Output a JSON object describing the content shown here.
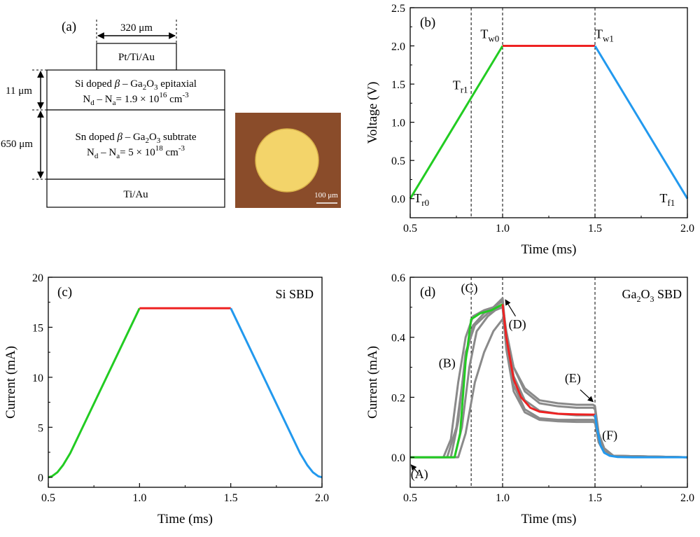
{
  "panel_a": {
    "label": "(a)",
    "contact_width": "320 μm",
    "top_contact": "Pt/Ti/Au",
    "epi_line1_pre": "Si doped ",
    "epi_line1_greek": "β",
    "epi_line1_mid": " – Ga",
    "epi_line1_s1": "2",
    "epi_line1_o": "O",
    "epi_line1_s2": "3",
    "epi_line1_post": " epitaxial",
    "epi_line2_n": "N",
    "epi_line2_d": "d",
    "epi_line2_minus": " – N",
    "epi_line2_a": "a",
    "epi_line2_val": "= 1.9 × 10",
    "epi_line2_exp": "16",
    "epi_line2_unit": " cm",
    "epi_line2_uexp": "-3",
    "epi_thickness": "11 μm",
    "sub_line1_pre": "Sn doped ",
    "sub_line1_greek": "β",
    "sub_line1_mid": " – Ga",
    "sub_line1_s1": "2",
    "sub_line1_o": "O",
    "sub_line1_s2": "3",
    "sub_line1_post": " subtrate",
    "sub_line2_n": "N",
    "sub_line2_d": "d",
    "sub_line2_minus": " – N",
    "sub_line2_a": "a",
    "sub_line2_val": "=  5 × 10",
    "sub_line2_exp": "18",
    "sub_line2_unit": " cm",
    "sub_line2_uexp": "-3",
    "sub_thickness": "650 μm",
    "bottom_contact": "Ti/Au",
    "scale_bar": "100 μm",
    "colors": {
      "photo_bg": "#8a4c2a",
      "pad": "#f3d46a"
    }
  },
  "chart_data": [
    {
      "panel": "(b)",
      "type": "line",
      "xlabel": "Time (ms)",
      "ylabel": "Voltage (V)",
      "xlim": [
        0.5,
        2.0
      ],
      "ylim": [
        -0.25,
        2.5
      ],
      "xticks": [
        "0.5",
        "1.0",
        "1.5",
        "2.0"
      ],
      "yticks": [
        "0.0",
        "0.5",
        "1.0",
        "1.5",
        "2.0",
        "2.5"
      ],
      "series": [
        {
          "color": "#22cc22",
          "x": [
            0.5,
            1.0
          ],
          "y": [
            0.0,
            2.0
          ]
        },
        {
          "color": "#ee2222",
          "x": [
            1.0,
            1.5
          ],
          "y": [
            2.0,
            2.0
          ]
        },
        {
          "color": "#2299ee",
          "x": [
            1.5,
            2.0
          ],
          "y": [
            2.0,
            0.0
          ]
        }
      ],
      "annotations": [
        {
          "base": "T",
          "sub": "r0",
          "x": 0.52,
          "y": -0.05
        },
        {
          "base": "T",
          "sub": "r1",
          "x": 0.73,
          "y": 1.43
        },
        {
          "base": "T",
          "sub": "w0",
          "x": 0.88,
          "y": 2.1
        },
        {
          "base": "T",
          "sub": "w1",
          "x": 1.5,
          "y": 2.1
        },
        {
          "base": "T",
          "sub": "f1",
          "x": 1.85,
          "y": -0.05
        }
      ],
      "vlines": [
        0.83,
        1.0,
        1.5
      ]
    },
    {
      "panel": "(c)",
      "type": "line",
      "title": "Si SBD",
      "xlabel": "Time (ms)",
      "ylabel": "Current (mA)",
      "xlim": [
        0.5,
        2.0
      ],
      "ylim": [
        -1,
        20
      ],
      "xticks": [
        "0.5",
        "1.0",
        "1.5",
        "2.0"
      ],
      "yticks": [
        "0",
        "5",
        "10",
        "15",
        "20"
      ],
      "series": [
        {
          "color": "#22cc22",
          "x": [
            0.5,
            0.52,
            0.55,
            0.58,
            0.62,
            1.0
          ],
          "y": [
            0.0,
            0.1,
            0.5,
            1.2,
            2.4,
            16.9
          ]
        },
        {
          "color": "#ee2222",
          "x": [
            1.0,
            1.5
          ],
          "y": [
            16.9,
            16.9
          ]
        },
        {
          "color": "#2299ee",
          "x": [
            1.5,
            1.88,
            1.92,
            1.95,
            1.98,
            2.0
          ],
          "y": [
            16.9,
            2.4,
            1.2,
            0.5,
            0.1,
            0.0
          ]
        }
      ]
    },
    {
      "panel": "(d)",
      "type": "line",
      "title_pre": "Ga",
      "title_s1": "2",
      "title_o": "O",
      "title_s2": "3",
      "title_post": " SBD",
      "xlabel": "Time (ms)",
      "ylabel": "Current (mA)",
      "xlim": [
        0.5,
        2.0
      ],
      "ylim": [
        -0.1,
        0.6
      ],
      "xticks": [
        "0.5",
        "1.0",
        "1.5",
        "2.0"
      ],
      "yticks": [
        "0.0",
        "0.2",
        "0.4",
        "0.6"
      ],
      "gray_series": [
        {
          "x": [
            0.5,
            0.68,
            0.72,
            0.76,
            0.8,
            0.84,
            0.9,
            0.95,
            1.0,
            1.02,
            1.06,
            1.12,
            1.2,
            1.3,
            1.4,
            1.49,
            1.5,
            1.52,
            1.55,
            1.6,
            2.0
          ],
          "y": [
            0.0,
            0.0,
            0.06,
            0.25,
            0.4,
            0.47,
            0.49,
            0.5,
            0.52,
            0.38,
            0.24,
            0.16,
            0.13,
            0.125,
            0.125,
            0.125,
            0.12,
            0.05,
            0.02,
            0.005,
            0.0
          ]
        },
        {
          "x": [
            0.5,
            0.7,
            0.75,
            0.8,
            0.84,
            0.9,
            0.95,
            1.0,
            1.02,
            1.06,
            1.12,
            1.2,
            1.3,
            1.4,
            1.49,
            1.5,
            1.52,
            1.55,
            1.6,
            2.0
          ],
          "y": [
            0.0,
            0.0,
            0.1,
            0.33,
            0.44,
            0.48,
            0.5,
            0.53,
            0.4,
            0.27,
            0.19,
            0.155,
            0.145,
            0.14,
            0.14,
            0.135,
            0.06,
            0.02,
            0.005,
            0.0
          ]
        },
        {
          "x": [
            0.5,
            0.74,
            0.78,
            0.82,
            0.86,
            0.92,
            1.0,
            1.02,
            1.06,
            1.12,
            1.2,
            1.3,
            1.4,
            1.49,
            1.5,
            1.52,
            1.55,
            1.6,
            2.0
          ],
          "y": [
            0.0,
            0.0,
            0.1,
            0.3,
            0.42,
            0.47,
            0.51,
            0.42,
            0.3,
            0.22,
            0.18,
            0.17,
            0.165,
            0.165,
            0.16,
            0.07,
            0.02,
            0.005,
            0.0
          ]
        },
        {
          "x": [
            0.5,
            0.76,
            0.8,
            0.85,
            0.9,
            0.95,
            1.0,
            1.02,
            1.06,
            1.12,
            1.2,
            1.3,
            1.4,
            1.49,
            1.5,
            1.52,
            1.55,
            1.6,
            2.0
          ],
          "y": [
            0.0,
            0.0,
            0.08,
            0.25,
            0.35,
            0.42,
            0.46,
            0.4,
            0.3,
            0.23,
            0.19,
            0.18,
            0.175,
            0.175,
            0.17,
            0.08,
            0.03,
            0.005,
            0.0
          ]
        },
        {
          "x": [
            0.5,
            0.72,
            0.76,
            0.8,
            0.85,
            0.92,
            1.0,
            1.02,
            1.06,
            1.12,
            1.2,
            1.3,
            1.4,
            1.49,
            1.5,
            1.52,
            1.55,
            1.6,
            2.0
          ],
          "y": [
            0.0,
            0.0,
            0.12,
            0.35,
            0.44,
            0.48,
            0.5,
            0.36,
            0.22,
            0.15,
            0.125,
            0.12,
            0.118,
            0.118,
            0.115,
            0.05,
            0.015,
            0.004,
            0.0
          ]
        }
      ],
      "series": [
        {
          "color": "#22cc22",
          "x": [
            0.5,
            0.74,
            0.77,
            0.8,
            0.83,
            0.88,
            0.94,
            1.0
          ],
          "y": [
            0.0,
            0.0,
            0.08,
            0.32,
            0.46,
            0.48,
            0.49,
            0.51
          ]
        },
        {
          "color": "#ee2222",
          "x": [
            1.0,
            1.02,
            1.06,
            1.1,
            1.15,
            1.2,
            1.3,
            1.4,
            1.5
          ],
          "y": [
            0.51,
            0.4,
            0.26,
            0.2,
            0.165,
            0.152,
            0.145,
            0.143,
            0.142
          ]
        },
        {
          "color": "#2299ee",
          "x": [
            1.5,
            1.51,
            1.53,
            1.55,
            1.58,
            1.62,
            1.7,
            2.0
          ],
          "y": [
            0.142,
            0.1,
            0.04,
            0.015,
            0.005,
            0.001,
            0.0,
            0.0
          ]
        }
      ],
      "vlines": [
        0.83,
        1.0,
        1.5
      ],
      "labels": [
        {
          "text": "(A)",
          "x": 0.55,
          "y": -0.07
        },
        {
          "text": "(B)",
          "x": 0.7,
          "y": 0.3
        },
        {
          "text": "(C)",
          "x": 0.82,
          "y": 0.55
        },
        {
          "text": "(D)",
          "x": 1.08,
          "y": 0.43
        },
        {
          "text": "(E)",
          "x": 1.38,
          "y": 0.25
        },
        {
          "text": "(F)",
          "x": 1.58,
          "y": 0.06
        }
      ]
    }
  ]
}
